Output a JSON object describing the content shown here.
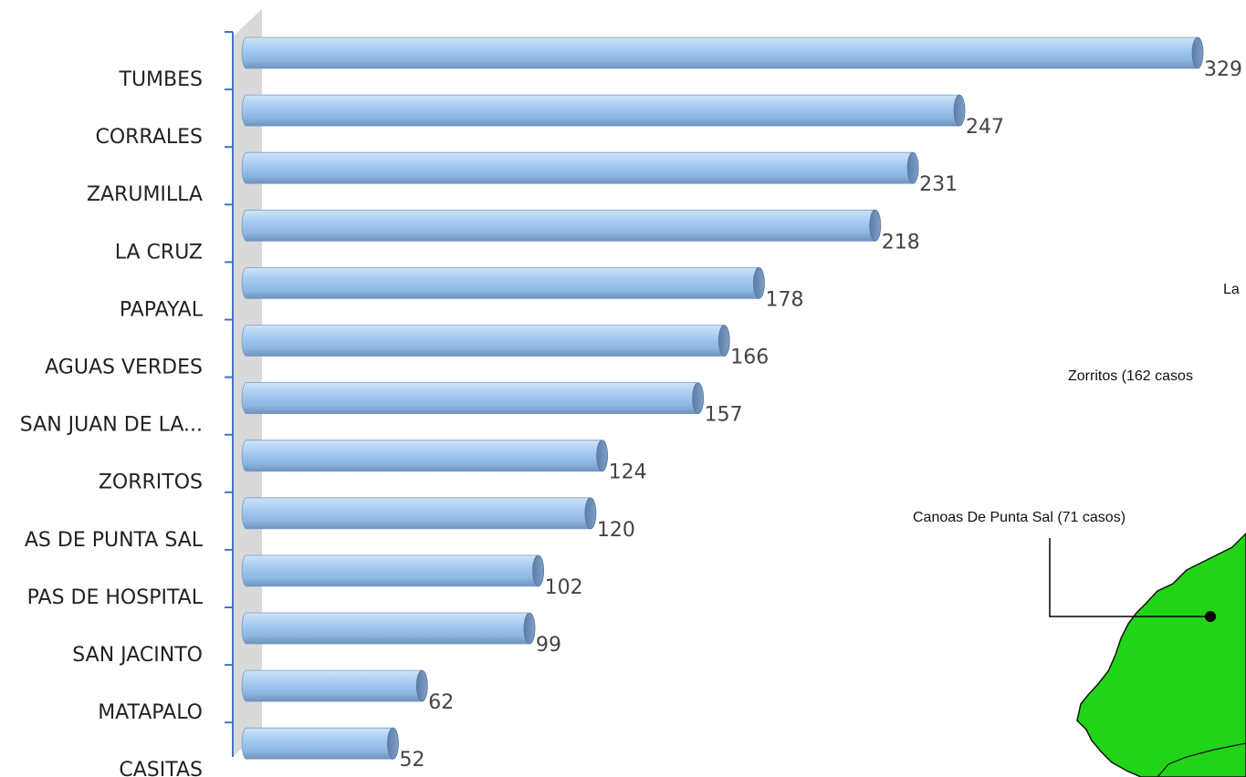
{
  "chart_data": {
    "type": "bar",
    "orientation": "horizontal",
    "categories": [
      "TUMBES",
      "CORRALES",
      "ZARUMILLA",
      "LA CRUZ",
      "PAPAYAL",
      "AGUAS VERDES",
      "SAN JUAN DE LA...",
      "ZORRITOS",
      "AS DE PUNTA SAL",
      "PAS DE HOSPITAL",
      "SAN JACINTO",
      "MATAPALO",
      "CASITAS"
    ],
    "values": [
      329,
      247,
      231,
      218,
      178,
      166,
      157,
      124,
      120,
      102,
      99,
      62,
      52
    ],
    "data_labels": [
      "329",
      "247",
      "231",
      "218",
      "178",
      "166",
      "157",
      "124",
      "120",
      "102",
      "99",
      "62",
      "52"
    ],
    "title": "",
    "xlabel": "",
    "ylabel": "",
    "grid": false,
    "legend": "none",
    "bar_color": "#9cc3ec",
    "bar_cap_color": "#6f8fb5"
  },
  "map_inset": {
    "labels": [
      "La",
      "Zorritos (162 casos",
      "Canoas De Punta Sal (71 casos)"
    ],
    "fill_color": "#22d418"
  }
}
